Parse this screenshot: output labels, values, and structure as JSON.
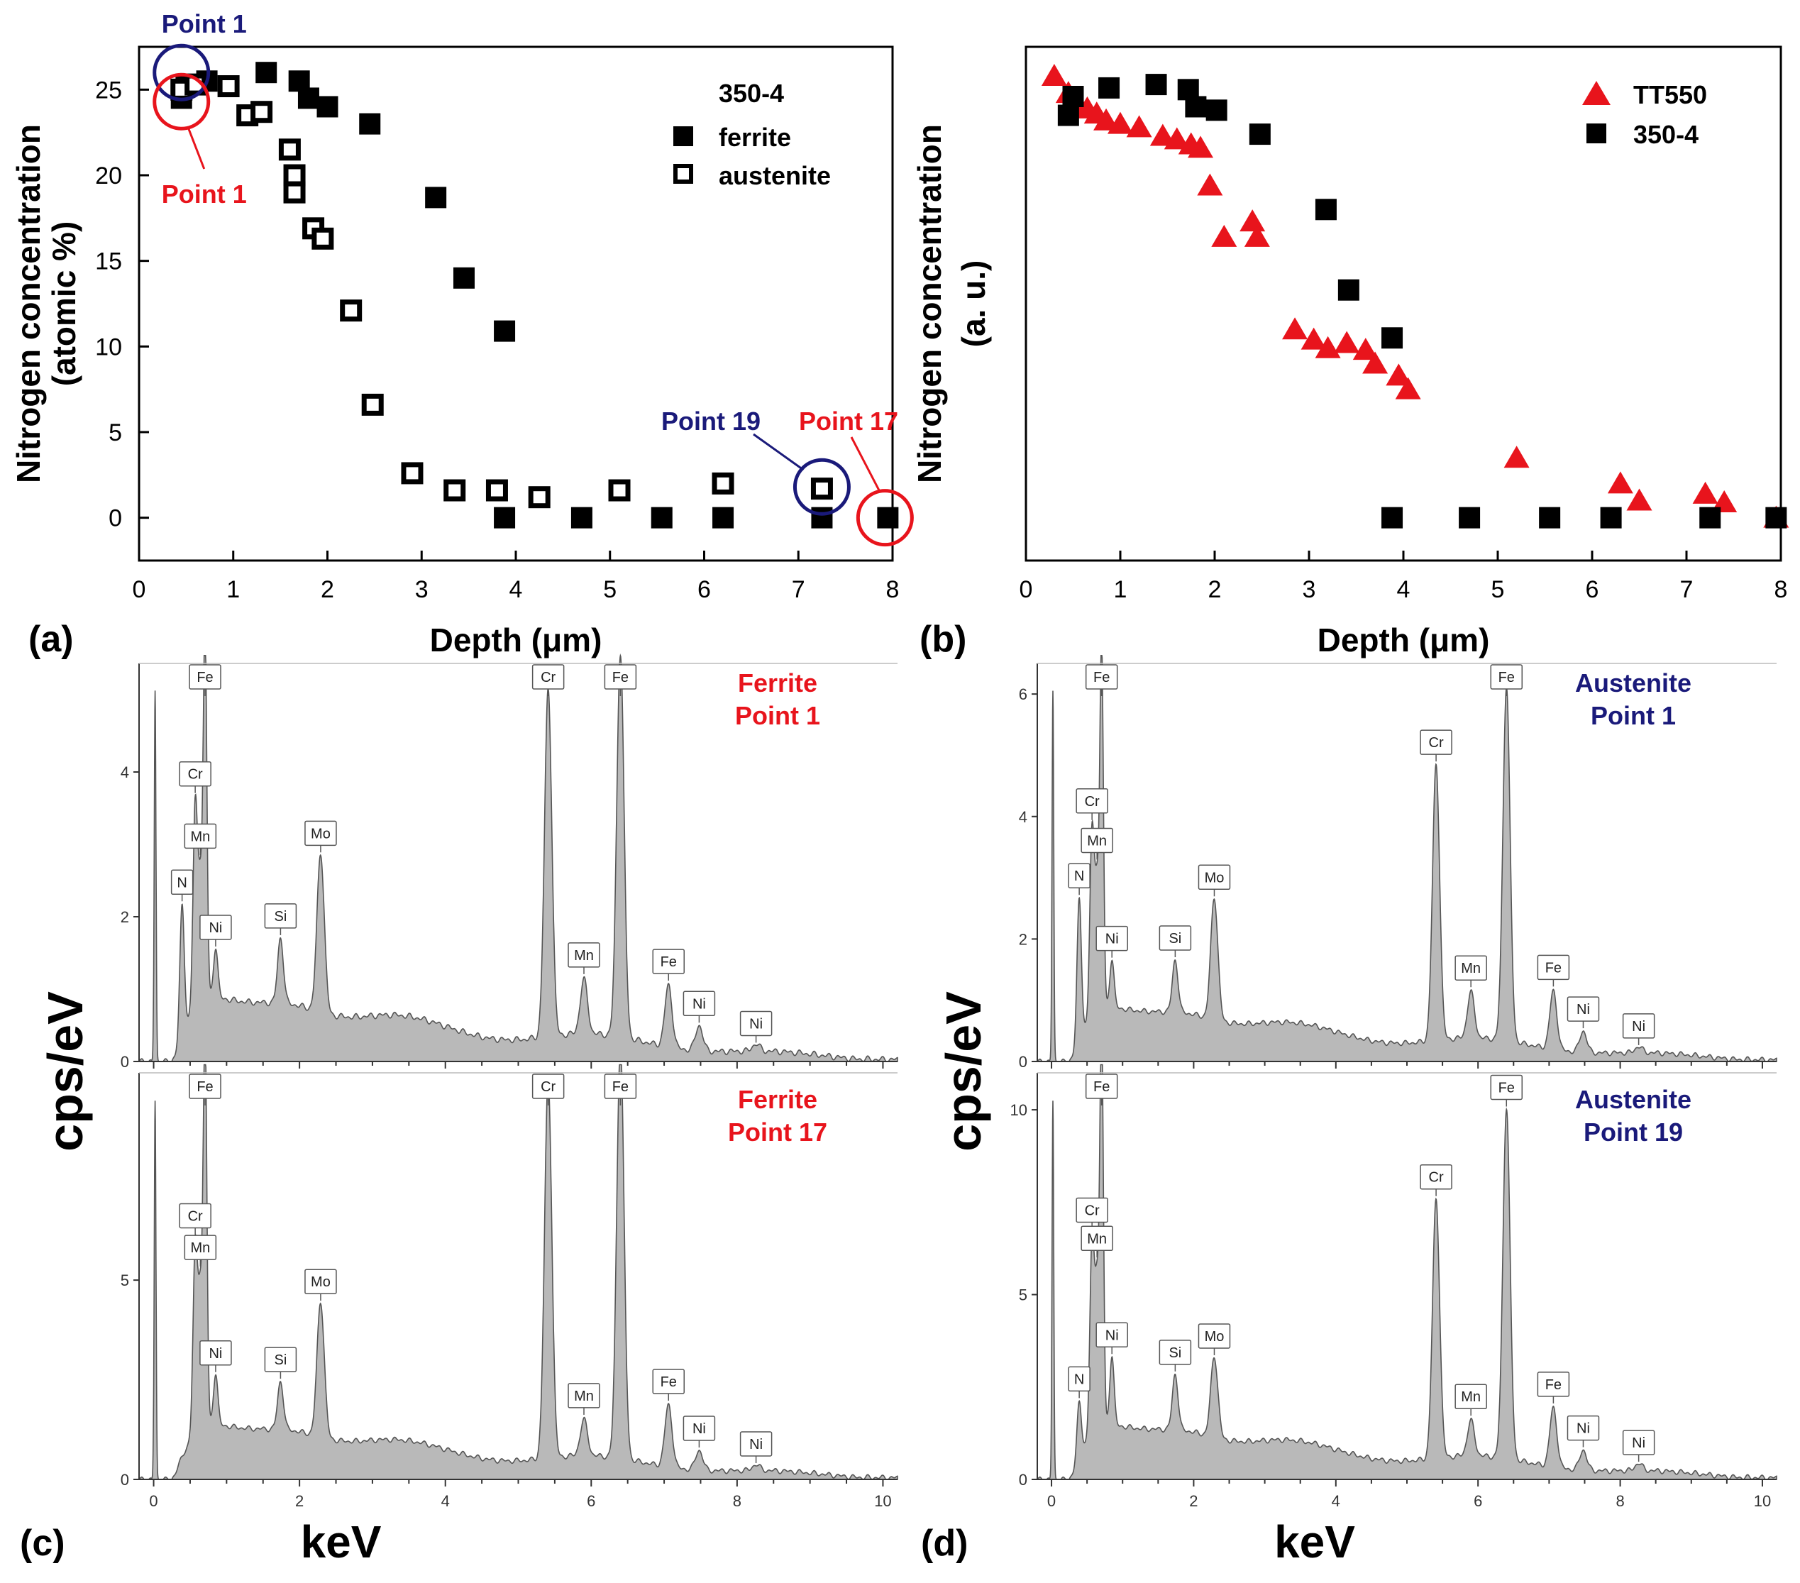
{
  "chart_data": [
    {
      "panel": "(a)",
      "type": "scatter",
      "xlabel": "Depth (μm)",
      "ylabel": [
        "Nitrogen concentration",
        "(atomic %)"
      ],
      "xlim": [
        0,
        8
      ],
      "ylim": [
        -2.5,
        27.5
      ],
      "xticks": [
        0,
        1,
        2,
        3,
        4,
        5,
        6,
        7,
        8
      ],
      "yticks": [
        0,
        5,
        10,
        15,
        20,
        25
      ],
      "legend_title": "350-4",
      "series": [
        {
          "name": "ferrite",
          "marker": "filled-square",
          "color": "#000000",
          "x": [
            0.45,
            0.5,
            0.72,
            1.35,
            1.7,
            1.8,
            2.0,
            2.45,
            3.15,
            3.45,
            3.88,
            3.88,
            4.7,
            5.55,
            6.2,
            7.25,
            7.95
          ],
          "y": [
            24.5,
            25.2,
            25.5,
            26.0,
            25.5,
            24.5,
            24.0,
            23.0,
            18.7,
            14.0,
            10.9,
            0,
            0,
            0,
            0,
            0,
            0
          ]
        },
        {
          "name": "austenite",
          "marker": "open-square",
          "color": "#000000",
          "x": [
            0.45,
            0.6,
            0.95,
            1.15,
            1.3,
            1.6,
            1.65,
            1.65,
            1.85,
            1.95,
            2.25,
            2.48,
            2.9,
            3.35,
            3.8,
            4.25,
            5.1,
            6.2,
            7.25
          ],
          "y": [
            25.0,
            25.3,
            25.2,
            23.5,
            23.7,
            21.5,
            20.0,
            19.0,
            16.9,
            16.3,
            12.1,
            6.6,
            2.6,
            1.6,
            1.6,
            1.2,
            1.6,
            2.0,
            1.7
          ]
        }
      ],
      "annotations": [
        {
          "text": "Point 1",
          "color": "#1a1a7a",
          "x": 0.45,
          "y": 26.0
        },
        {
          "text": "Point 1",
          "color": "#e8141c",
          "x": 0.45,
          "y": 24.3
        },
        {
          "text": "Point 19",
          "color": "#1a1a7a",
          "x": 7.25,
          "y": 1.8
        },
        {
          "text": "Point 17",
          "color": "#e8141c",
          "x": 7.95,
          "y": 0
        }
      ]
    },
    {
      "panel": "(b)",
      "type": "scatter",
      "xlabel": "Depth (μm)",
      "ylabel": [
        "Nitrogen concentration",
        "(a. u.)"
      ],
      "xlim": [
        0,
        8
      ],
      "ylim": [
        -2.5,
        27.5
      ],
      "xticks": [
        0,
        1,
        2,
        3,
        4,
        5,
        6,
        7,
        8
      ],
      "yticks": [],
      "series": [
        {
          "name": "TT550",
          "marker": "filled-triangle",
          "color": "#e8141c",
          "x": [
            0.3,
            0.45,
            0.55,
            0.65,
            0.75,
            0.85,
            1.0,
            1.2,
            1.45,
            1.6,
            1.75,
            1.85,
            1.95,
            2.1,
            2.4,
            2.45,
            2.85,
            3.05,
            3.2,
            3.4,
            3.6,
            3.7,
            3.95,
            4.05,
            5.2,
            6.3,
            6.5,
            7.2,
            7.4,
            7.95
          ],
          "y": [
            25.8,
            24.8,
            24.2,
            23.9,
            23.6,
            23.2,
            23.0,
            22.8,
            22.3,
            22.1,
            21.8,
            21.6,
            19.4,
            16.4,
            17.3,
            16.4,
            11.0,
            10.4,
            9.9,
            10.2,
            9.8,
            9.0,
            8.3,
            7.5,
            3.5,
            2.0,
            1.0,
            1.4,
            0.9,
            0.0
          ]
        },
        {
          "name": "350-4",
          "marker": "filled-square",
          "color": "#000000",
          "x": [
            0.45,
            0.5,
            0.88,
            1.38,
            1.72,
            1.8,
            2.02,
            2.48,
            3.18,
            3.42,
            3.88,
            3.88,
            4.7,
            5.55,
            6.2,
            7.25,
            7.95
          ],
          "y": [
            23.5,
            24.6,
            25.1,
            25.3,
            25.0,
            24.0,
            23.8,
            22.4,
            18.0,
            13.3,
            10.5,
            0,
            0,
            0,
            0,
            0,
            0
          ]
        }
      ]
    },
    {
      "panel": "(c)",
      "type": "area",
      "xlabel": "keV",
      "ylabel": "cps/eV",
      "xlim": [
        -0.2,
        10.2
      ],
      "xticks": [
        0,
        2,
        4,
        6,
        8,
        10
      ],
      "spectra": [
        {
          "title": [
            "Ferrite",
            "Point 1"
          ],
          "title_color": "#e8141c",
          "ylim": [
            0,
            5.5
          ],
          "yticks": [
            0,
            2,
            4
          ],
          "bg": 0.9,
          "peaks": [
            {
              "el": "N",
              "keV": 0.39,
              "h": 1.8,
              "w": 0.03
            },
            {
              "el": "Cr",
              "keV": 0.57,
              "h": 2.7,
              "w": 0.03
            },
            {
              "el": "Mn",
              "keV": 0.64,
              "h": 1.6,
              "w": 0.03
            },
            {
              "el": "Fe",
              "keV": 0.705,
              "h": 5.0,
              "w": 0.025
            },
            {
              "el": "Ni",
              "keV": 0.85,
              "h": 0.7,
              "w": 0.03
            },
            {
              "el": "Si",
              "keV": 1.74,
              "h": 0.9,
              "w": 0.04
            },
            {
              "el": "Mo",
              "keV": 2.29,
              "h": 2.2,
              "w": 0.05
            },
            {
              "el": "Cr",
              "keV": 5.41,
              "h": 4.8,
              "w": 0.05
            },
            {
              "el": "Mn",
              "keV": 5.9,
              "h": 0.75,
              "w": 0.05
            },
            {
              "el": "Fe",
              "keV": 6.4,
              "h": 5.3,
              "w": 0.05
            },
            {
              "el": "Fe",
              "keV": 7.06,
              "h": 0.85,
              "w": 0.05
            },
            {
              "el": "Ni",
              "keV": 7.48,
              "h": 0.35,
              "w": 0.05
            },
            {
              "el": "Ni",
              "keV": 8.26,
              "h": 0.1,
              "w": 0.05
            }
          ]
        },
        {
          "title": [
            "Ferrite",
            "Point 17"
          ],
          "title_color": "#e8141c",
          "ylim": [
            0,
            10.2
          ],
          "yticks": [
            0,
            5
          ],
          "bg": 1.4,
          "peaks": [
            {
              "el": "Cr",
              "keV": 0.57,
              "h": 4.5,
              "w": 0.03
            },
            {
              "el": "Mn",
              "keV": 0.64,
              "h": 3.3,
              "w": 0.03
            },
            {
              "el": "Fe",
              "keV": 0.705,
              "h": 9.7,
              "w": 0.025
            },
            {
              "el": "Ni",
              "keV": 0.85,
              "h": 1.3,
              "w": 0.03
            },
            {
              "el": "Si",
              "keV": 1.74,
              "h": 1.2,
              "w": 0.04
            },
            {
              "el": "Mo",
              "keV": 2.29,
              "h": 3.4,
              "w": 0.05
            },
            {
              "el": "Cr",
              "keV": 5.41,
              "h": 9.5,
              "w": 0.05
            },
            {
              "el": "Mn",
              "keV": 5.9,
              "h": 0.9,
              "w": 0.05
            },
            {
              "el": "Fe",
              "keV": 6.4,
              "h": 10.4,
              "w": 0.05
            },
            {
              "el": "Fe",
              "keV": 7.06,
              "h": 1.55,
              "w": 0.05
            },
            {
              "el": "Ni",
              "keV": 7.48,
              "h": 0.5,
              "w": 0.05
            },
            {
              "el": "Ni",
              "keV": 8.26,
              "h": 0.15,
              "w": 0.05
            }
          ]
        }
      ]
    },
    {
      "panel": "(d)",
      "type": "area",
      "xlabel": "keV",
      "ylabel": "cps/eV",
      "xlim": [
        -0.2,
        10.2
      ],
      "xticks": [
        0,
        2,
        4,
        6,
        8,
        10
      ],
      "spectra": [
        {
          "title": [
            "Austenite",
            "Point 1"
          ],
          "title_color": "#1a1a7a",
          "ylim": [
            0,
            6.5
          ],
          "yticks": [
            0,
            2,
            4,
            6
          ],
          "bg": 0.9,
          "peaks": [
            {
              "el": "N",
              "keV": 0.39,
              "h": 2.3,
              "w": 0.03
            },
            {
              "el": "Cr",
              "keV": 0.57,
              "h": 2.9,
              "w": 0.03
            },
            {
              "el": "Mn",
              "keV": 0.64,
              "h": 2.0,
              "w": 0.03
            },
            {
              "el": "Fe",
              "keV": 0.705,
              "h": 5.8,
              "w": 0.025
            },
            {
              "el": "Ni",
              "keV": 0.85,
              "h": 0.8,
              "w": 0.03
            },
            {
              "el": "Si",
              "keV": 1.74,
              "h": 0.85,
              "w": 0.04
            },
            {
              "el": "Mo",
              "keV": 2.29,
              "h": 2.0,
              "w": 0.05
            },
            {
              "el": "Cr",
              "keV": 5.41,
              "h": 4.5,
              "w": 0.05
            },
            {
              "el": "Mn",
              "keV": 5.9,
              "h": 0.75,
              "w": 0.05
            },
            {
              "el": "Fe",
              "keV": 6.4,
              "h": 5.8,
              "w": 0.05
            },
            {
              "el": "Fe",
              "keV": 7.06,
              "h": 0.95,
              "w": 0.05
            },
            {
              "el": "Ni",
              "keV": 7.48,
              "h": 0.35,
              "w": 0.05
            },
            {
              "el": "Ni",
              "keV": 8.26,
              "h": 0.1,
              "w": 0.05
            }
          ]
        },
        {
          "title": [
            "Austenite",
            "Point 19"
          ],
          "title_color": "#1a1a7a",
          "ylim": [
            0,
            11.0
          ],
          "yticks": [
            0,
            5,
            10
          ],
          "bg": 1.5,
          "peaks": [
            {
              "el": "N",
              "keV": 0.39,
              "h": 1.5,
              "w": 0.03
            },
            {
              "el": "Cr",
              "keV": 0.57,
              "h": 5.0,
              "w": 0.03
            },
            {
              "el": "Mn",
              "keV": 0.64,
              "h": 3.8,
              "w": 0.03
            },
            {
              "el": "Fe",
              "keV": 0.705,
              "h": 10.6,
              "w": 0.025
            },
            {
              "el": "Ni",
              "keV": 0.85,
              "h": 1.9,
              "w": 0.03
            },
            {
              "el": "Si",
              "keV": 1.74,
              "h": 1.5,
              "w": 0.04
            },
            {
              "el": "Mo",
              "keV": 2.29,
              "h": 2.2,
              "w": 0.05
            },
            {
              "el": "Cr",
              "keV": 5.41,
              "h": 7.0,
              "w": 0.05
            },
            {
              "el": "Mn",
              "keV": 5.9,
              "h": 0.95,
              "w": 0.05
            },
            {
              "el": "Fe",
              "keV": 6.4,
              "h": 9.5,
              "w": 0.05
            },
            {
              "el": "Fe",
              "keV": 7.06,
              "h": 1.6,
              "w": 0.05
            },
            {
              "el": "Ni",
              "keV": 7.48,
              "h": 0.55,
              "w": 0.05
            },
            {
              "el": "Ni",
              "keV": 8.26,
              "h": 0.2,
              "w": 0.05
            }
          ]
        }
      ]
    }
  ]
}
